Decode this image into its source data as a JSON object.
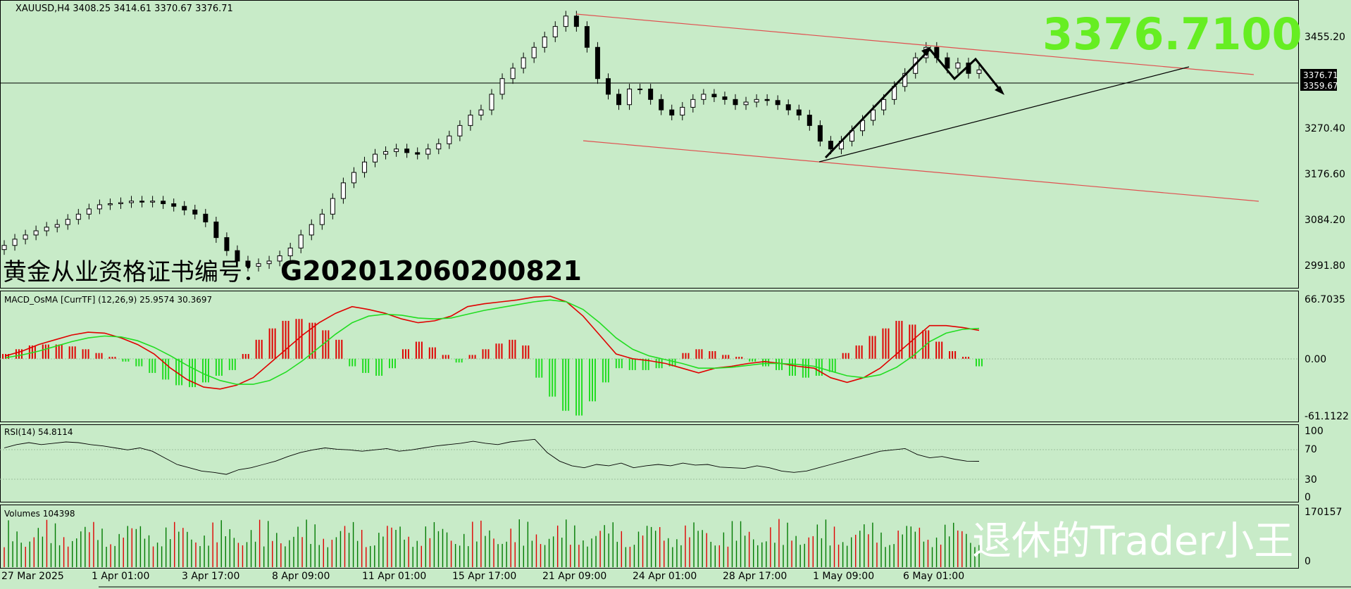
{
  "main": {
    "header": "XAUUSD,H4  3408.25 3414.61 3370.67 3376.71",
    "big_price": "3376.7100",
    "cert_text": "黄金从业资格证书编号：",
    "cert_number": "G202012060200821",
    "price_labels": [
      "3455.20",
      "3376.71",
      "3359.67",
      "3270.40",
      "3176.60",
      "3084.20",
      "2991.80"
    ],
    "current_price_label": "3376.71",
    "secondary_price_label": "3359.67"
  },
  "macd": {
    "header": "MACD_OsMA [CurrTF] (12,26,9) 25.9574 30.3697",
    "labels": [
      "66.7035",
      "0.00",
      "-61.1122"
    ]
  },
  "rsi": {
    "header": "RSI(14) 54.8114",
    "labels": [
      "100",
      "70",
      "30",
      "0"
    ]
  },
  "volumes": {
    "header": "Volumes 104398",
    "labels": [
      "170157",
      "0"
    ]
  },
  "watermark": "退休的Trader小王",
  "x_axis": [
    "27 Mar 2025",
    "1 Apr 01:00",
    "3 Apr 17:00",
    "8 Apr 09:00",
    "11 Apr 01:00",
    "15 Apr 17:00",
    "21 Apr 09:00",
    "24 Apr 01:00",
    "28 Apr 17:00",
    "1 May 09:00",
    "6 May 01:00"
  ],
  "colors": {
    "background": "#c8ebc8",
    "bull": "#007a00",
    "bear": "#e00000",
    "big_price": "#66ee22",
    "signal": "#22dd22"
  },
  "chart_data": [
    {
      "type": "candlestick",
      "title": "XAUUSD,H4",
      "ylim": [
        2960,
        3500
      ],
      "close_price": [
        3040,
        3052,
        3060,
        3068,
        3075,
        3080,
        3090,
        3100,
        3110,
        3118,
        3120,
        3122,
        3125,
        3123,
        3125,
        3120,
        3115,
        3108,
        3100,
        3085,
        3055,
        3030,
        3010,
        3000,
        3005,
        3010,
        3020,
        3035,
        3060,
        3080,
        3100,
        3130,
        3160,
        3180,
        3200,
        3215,
        3220,
        3225,
        3218,
        3215,
        3225,
        3235,
        3250,
        3270,
        3290,
        3300,
        3330,
        3360,
        3380,
        3400,
        3420,
        3440,
        3460,
        3480,
        3460,
        3420,
        3360,
        3330,
        3310,
        3340,
        3340,
        3320,
        3300,
        3290,
        3305,
        3320,
        3330,
        3325,
        3320,
        3310,
        3315,
        3320,
        3318,
        3310,
        3300,
        3290,
        3270,
        3240,
        3225,
        3240,
        3260,
        3280,
        3300,
        3320,
        3345,
        3370,
        3400,
        3420,
        3400,
        3380,
        3390,
        3370,
        3376.71
      ]
    },
    {
      "type": "histogram+line",
      "title": "MACD_OsMA [CurrTF] (12,26,9)",
      "ylim": [
        -61.1122,
        66.7035
      ],
      "osma": [
        5,
        10,
        14,
        15,
        15,
        13,
        10,
        6,
        2,
        -3,
        -8,
        -15,
        -22,
        -28,
        -30,
        -25,
        -18,
        -12,
        5,
        20,
        32,
        40,
        42,
        38,
        30,
        20,
        -8,
        -15,
        -18,
        -10,
        10,
        18,
        12,
        4,
        -4,
        4,
        10,
        16,
        20,
        14,
        -20,
        -40,
        -55,
        -60,
        -45,
        -25,
        -10,
        -12,
        -12,
        -10,
        -8,
        6,
        10,
        8,
        4,
        2,
        -3,
        -8,
        -12,
        -18,
        -20,
        -18,
        -14,
        6,
        14,
        24,
        32,
        40,
        36,
        30,
        18,
        8,
        2,
        -8
      ],
      "macd": [
        3,
        8,
        15,
        20,
        25,
        28,
        27,
        22,
        15,
        5,
        -10,
        -22,
        -30,
        -32,
        -28,
        -20,
        -5,
        10,
        25,
        38,
        48,
        55,
        52,
        48,
        42,
        38,
        40,
        45,
        55,
        58,
        60,
        62,
        65,
        66,
        60,
        45,
        25,
        5,
        0,
        -2,
        -5,
        -10,
        -15,
        -10,
        -8,
        -5,
        -3,
        -5,
        -8,
        -10,
        -20,
        -25,
        -20,
        -10,
        5,
        20,
        35,
        35,
        33,
        30
      ],
      "signal": [
        1,
        4,
        8,
        13,
        18,
        22,
        24,
        23,
        19,
        12,
        3,
        -7,
        -16,
        -23,
        -27,
        -27,
        -23,
        -14,
        -2,
        12,
        26,
        38,
        45,
        47,
        46,
        43,
        42,
        43,
        47,
        51,
        54,
        57,
        60,
        62,
        60,
        52,
        38,
        22,
        10,
        3,
        -1,
        -5,
        -10,
        -10,
        -9,
        -7,
        -5,
        -5,
        -6,
        -8,
        -13,
        -18,
        -20,
        -17,
        -9,
        3,
        18,
        27,
        31,
        32
      ]
    },
    {
      "type": "line",
      "title": "RSI(14)",
      "ylim": [
        0,
        100
      ],
      "levels": [
        70,
        30
      ],
      "values": [
        75,
        80,
        83,
        80,
        82,
        84,
        83,
        80,
        78,
        75,
        72,
        75,
        70,
        60,
        50,
        45,
        40,
        38,
        35,
        42,
        45,
        50,
        55,
        62,
        68,
        72,
        75,
        73,
        72,
        70,
        72,
        74,
        70,
        72,
        75,
        78,
        80,
        82,
        85,
        82,
        80,
        84,
        86,
        88,
        68,
        55,
        48,
        45,
        50,
        48,
        52,
        45,
        48,
        50,
        48,
        52,
        49,
        50,
        46,
        45,
        44,
        48,
        45,
        40,
        38,
        40,
        45,
        50,
        55,
        60,
        65,
        70,
        72,
        74,
        65,
        60,
        62,
        58,
        55,
        54.8114
      ]
    },
    {
      "type": "bar",
      "title": "Volumes",
      "ylim": [
        0,
        170157
      ],
      "last_value": 104398
    }
  ]
}
